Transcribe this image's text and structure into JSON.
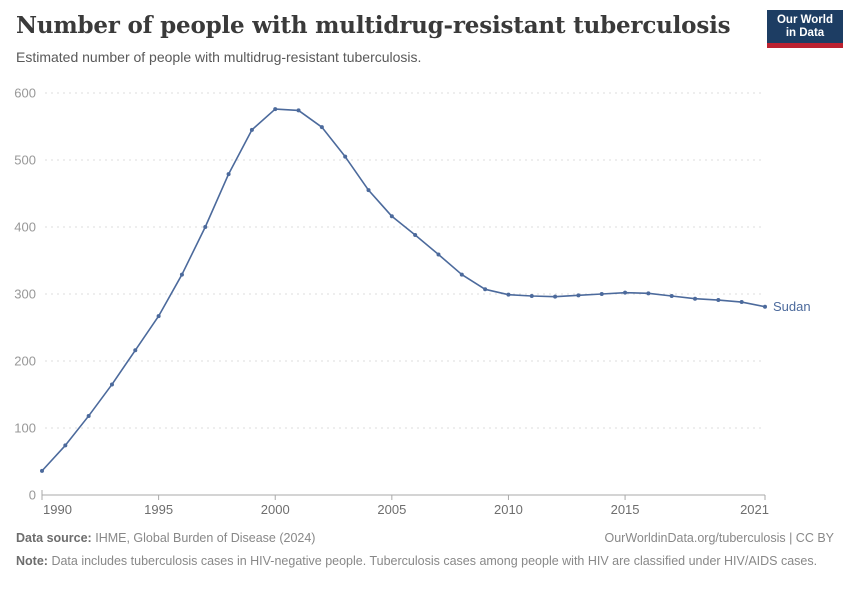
{
  "header": {
    "title": "Number of people with multidrug-resistant tuberculosis",
    "subtitle": "Estimated number of people with multidrug-resistant tuberculosis.",
    "logo": {
      "line1": "Our World",
      "line2": "in Data",
      "bg_color": "#1d3d63",
      "accent_color": "#bc2130"
    }
  },
  "chart_data": {
    "type": "line",
    "title": "Number of people with multidrug-resistant tuberculosis",
    "subtitle": "Estimated number of people with multidrug-resistant tuberculosis.",
    "x": [
      1990,
      1991,
      1992,
      1993,
      1994,
      1995,
      1996,
      1997,
      1998,
      1999,
      2000,
      2001,
      2002,
      2003,
      2004,
      2005,
      2006,
      2007,
      2008,
      2009,
      2010,
      2011,
      2012,
      2013,
      2014,
      2015,
      2016,
      2017,
      2018,
      2019,
      2020,
      2021
    ],
    "series": [
      {
        "name": "Sudan",
        "color": "#4C6A9C",
        "values": [
          36,
          74,
          118,
          165,
          216,
          267,
          329,
          400,
          479,
          545,
          576,
          574,
          549,
          505,
          455,
          416,
          388,
          359,
          329,
          307,
          299,
          297,
          296,
          298,
          300,
          302,
          301,
          297,
          293,
          291,
          288,
          281
        ]
      }
    ],
    "x_ticks": [
      1990,
      1995,
      2000,
      2005,
      2010,
      2015,
      2021
    ],
    "y_ticks": [
      0,
      100,
      200,
      300,
      400,
      500,
      600
    ],
    "xlim": [
      1990,
      2021
    ],
    "ylim": [
      0,
      600
    ],
    "xlabel": "",
    "ylabel": "",
    "grid": "horizontal-dashed",
    "legend_position": "end-of-line-label",
    "marker": "dot"
  },
  "footer": {
    "source_label": "Data source:",
    "source_value": "IHME, Global Burden of Disease (2024)",
    "link": "OurWorldinData.org/tuberculosis | CC BY",
    "note_label": "Note:",
    "note_value": "Data includes tuberculosis cases in HIV-negative people. Tuberculosis cases among people with HIV are classified under HIV/AIDS cases."
  }
}
